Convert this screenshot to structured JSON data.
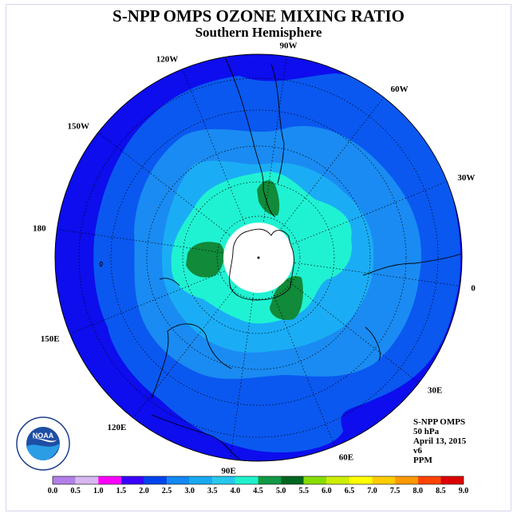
{
  "header": {
    "title": "S-NPP OMPS OZONE MIXING RATIO",
    "subtitle": "Southern Hemisphere"
  },
  "longitude_labels": [
    {
      "text": "90W",
      "lon": -90
    },
    {
      "text": "60W",
      "lon": -60
    },
    {
      "text": "30W",
      "lon": -30
    },
    {
      "text": "0",
      "lon": 0
    },
    {
      "text": "30E",
      "lon": 30
    },
    {
      "text": "60E",
      "lon": 60
    },
    {
      "text": "90E",
      "lon": 90
    },
    {
      "text": "120E",
      "lon": 120
    },
    {
      "text": "150E",
      "lon": 150
    },
    {
      "text": "180",
      "lon": 180
    },
    {
      "text": "150W",
      "lon": -150
    },
    {
      "text": "120W",
      "lon": -120
    }
  ],
  "info": {
    "instrument": "S-NPP OMPS",
    "level": "50 hPa",
    "date": "April 13, 2015",
    "version": "v6",
    "units": "PPM"
  },
  "logo": {
    "text": "NOAA",
    "ring_text": "NATIONAL OCEANIC AND ATMOSPHERIC ADMINISTRATION · U.S. DEPARTMENT OF COMMERCE"
  },
  "colorbar": {
    "ticks": [
      "0.0",
      "0.5",
      "1.0",
      "1.5",
      "2.0",
      "2.5",
      "3.0",
      "3.5",
      "4.0",
      "4.5",
      "5.0",
      "5.5",
      "6.0",
      "6.5",
      "7.0",
      "7.5",
      "8.0",
      "8.5",
      "9.0"
    ],
    "colors": [
      "#b27fe8",
      "#d7b7f0",
      "#ff00ff",
      "#3a00ff",
      "#0044ee",
      "#1488f5",
      "#19a9f2",
      "#26c8ee",
      "#1ff2cc",
      "#119944",
      "#006622",
      "#88dd00",
      "#ccee00",
      "#ffff00",
      "#ffcc00",
      "#ff9900",
      "#ff4400",
      "#dd0000",
      "#8b5a3c"
    ]
  },
  "colors": {
    "level_1_5": "#0d0ded",
    "level_2_0": "#0a58f0",
    "level_2_5": "#1a8bf2",
    "level_3_0": "#1aadf5",
    "level_3_5": "#1ff2d2",
    "level_4_0": "#118a3a",
    "pole_hole": "#ffffff",
    "coast": "#000000"
  }
}
